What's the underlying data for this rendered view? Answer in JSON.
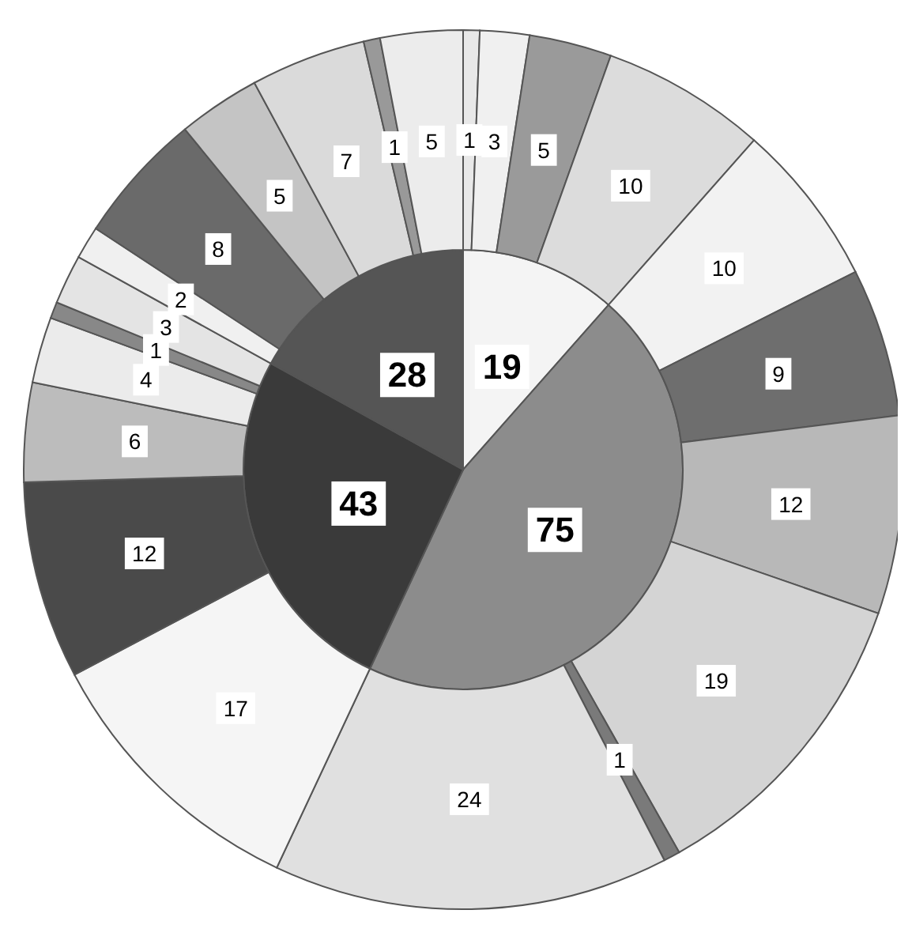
{
  "chart_data": {
    "type": "donut",
    "data_labels": true,
    "legend": false,
    "series": [
      {
        "values": [
          19,
          75,
          43,
          28
        ],
        "colors": [
          "#f4f4f4",
          "#8c8c8c",
          "#3a3a3a",
          "#555555"
        ]
      },
      {
        "values": [
          1,
          3,
          5,
          10,
          10,
          9,
          12,
          19,
          1,
          24,
          17,
          12,
          6,
          4,
          1,
          3,
          2,
          8,
          5,
          7,
          1,
          5
        ],
        "colors": [
          "#e8e8e8",
          "#f0f0f0",
          "#9a9a9a",
          "#dcdcdc",
          "#f2f2f2",
          "#6e6e6e",
          "#b8b8b8",
          "#d4d4d4",
          "#7a7a7a",
          "#e0e0e0",
          "#f5f5f5",
          "#4a4a4a",
          "#bcbcbc",
          "#ebebeb",
          "#888888",
          "#e4e4e4",
          "#f0f0f0",
          "#6a6a6a",
          "#c4c4c4",
          "#dadada",
          "#999999",
          "#ececec"
        ]
      }
    ]
  }
}
